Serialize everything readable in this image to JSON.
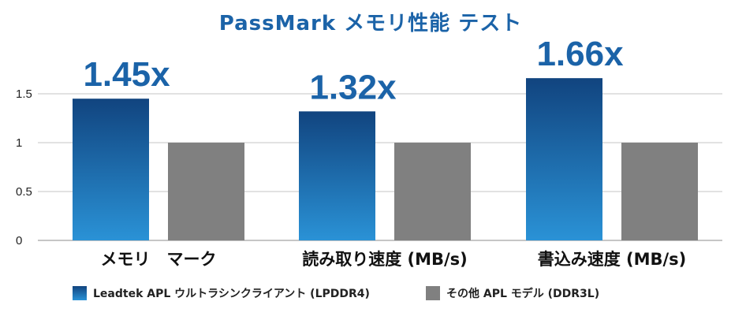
{
  "chart_data": {
    "type": "bar",
    "title": "PassMark メモリ性能 テスト",
    "categories": [
      "メモリ　マーク",
      "読み取り速度 (MB/s)",
      "書込み速度 (MB/s)"
    ],
    "series": [
      {
        "name": "Leadtek APL ウルトラシンクライアント (LPDDR4)",
        "values": [
          1.45,
          1.32,
          1.66
        ],
        "color": "#1a68b0"
      },
      {
        "name": "その他 APL モデル (DDR3L)",
        "values": [
          1,
          1,
          1
        ],
        "color": "#808080"
      }
    ],
    "ratio_labels": [
      "1.45x",
      "1.32x",
      "1.66x"
    ],
    "yticks": [
      "0",
      "0.5",
      "1",
      "1.5"
    ],
    "ylim": [
      0,
      1.7
    ],
    "xlabel": "",
    "ylabel": "",
    "grid": true,
    "legend_position": "bottom"
  }
}
